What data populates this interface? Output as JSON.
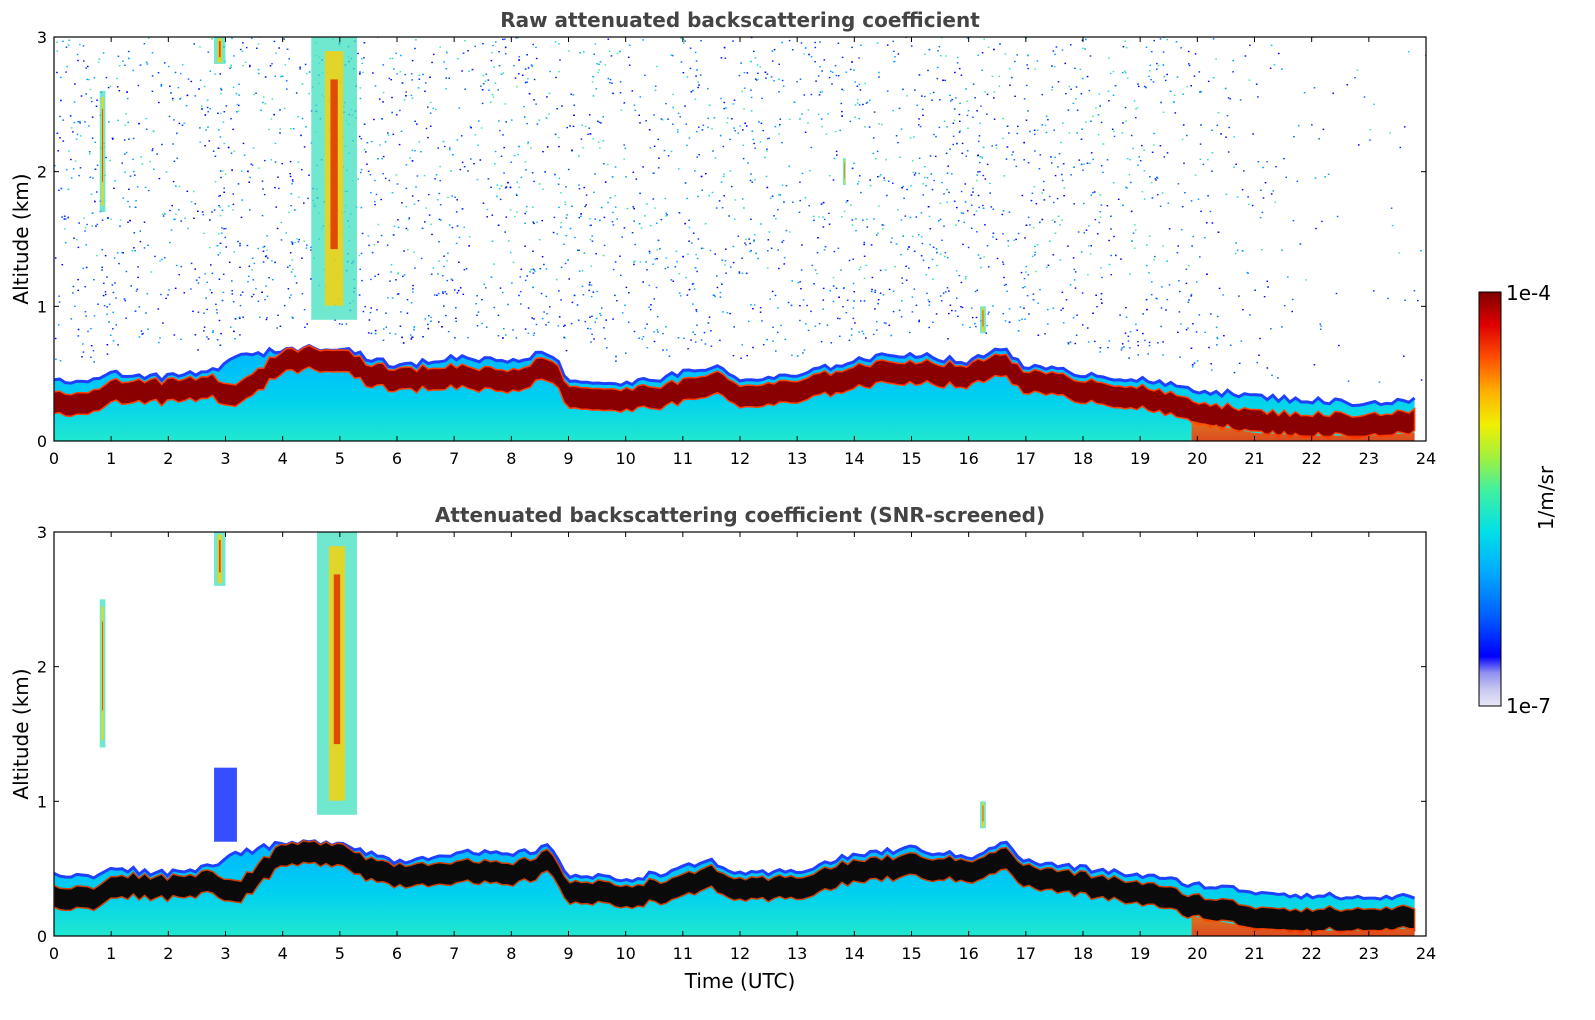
{
  "chart_data": [
    {
      "type": "heatmap",
      "title": "Raw attenuated backscattering coefficient",
      "xlabel": "",
      "ylabel": "Altitude (km)",
      "xlim": [
        0,
        24
      ],
      "ylim": [
        0,
        3
      ],
      "x_ticks": [
        "0",
        "1",
        "2",
        "3",
        "4",
        "5",
        "6",
        "7",
        "8",
        "9",
        "10",
        "11",
        "12",
        "13",
        "14",
        "15",
        "16",
        "17",
        "18",
        "19",
        "20",
        "21",
        "22",
        "23",
        "24"
      ],
      "y_ticks": [
        "0",
        "1",
        "2",
        "3"
      ],
      "screened": false,
      "boundary_layer_top_km": [
        [
          0,
          0.45
        ],
        [
          0.8,
          0.44
        ],
        [
          1.0,
          0.52
        ],
        [
          1.5,
          0.48
        ],
        [
          2.0,
          0.47
        ],
        [
          2.8,
          0.52
        ],
        [
          3.0,
          0.6
        ],
        [
          4.0,
          0.68
        ],
        [
          5.0,
          0.7
        ],
        [
          5.5,
          0.62
        ],
        [
          6.0,
          0.55
        ],
        [
          7.0,
          0.62
        ],
        [
          8.0,
          0.6
        ],
        [
          8.7,
          0.66
        ],
        [
          9.0,
          0.45
        ],
        [
          10.0,
          0.42
        ],
        [
          11.0,
          0.5
        ],
        [
          11.5,
          0.56
        ],
        [
          12.0,
          0.45
        ],
        [
          13.0,
          0.48
        ],
        [
          14.0,
          0.6
        ],
        [
          15.0,
          0.65
        ],
        [
          16.0,
          0.58
        ],
        [
          16.6,
          0.7
        ],
        [
          17.0,
          0.55
        ],
        [
          18.0,
          0.5
        ],
        [
          19.0,
          0.45
        ],
        [
          20.0,
          0.38
        ],
        [
          21.0,
          0.33
        ],
        [
          22.0,
          0.3
        ],
        [
          23.0,
          0.28
        ],
        [
          23.8,
          0.3
        ]
      ],
      "aerosol_layer_km": [
        [
          0,
          0.28
        ],
        [
          0.8,
          0.28
        ],
        [
          1.0,
          0.38
        ],
        [
          2.0,
          0.36
        ],
        [
          2.8,
          0.4
        ],
        [
          3.2,
          0.32
        ],
        [
          4.0,
          0.6
        ],
        [
          5.0,
          0.62
        ],
        [
          5.5,
          0.5
        ],
        [
          6.0,
          0.45
        ],
        [
          7.0,
          0.48
        ],
        [
          8.0,
          0.45
        ],
        [
          8.7,
          0.55
        ],
        [
          9.0,
          0.33
        ],
        [
          10.0,
          0.3
        ],
        [
          11.0,
          0.36
        ],
        [
          11.5,
          0.44
        ],
        [
          12.0,
          0.33
        ],
        [
          13.0,
          0.36
        ],
        [
          14.0,
          0.48
        ],
        [
          15.0,
          0.52
        ],
        [
          16.0,
          0.48
        ],
        [
          16.6,
          0.58
        ],
        [
          17.0,
          0.44
        ],
        [
          18.0,
          0.38
        ],
        [
          19.0,
          0.32
        ],
        [
          20.0,
          0.22
        ],
        [
          21.0,
          0.14
        ],
        [
          22.0,
          0.12
        ],
        [
          23.0,
          0.12
        ],
        [
          23.8,
          0.14
        ]
      ],
      "cloud_features": [
        {
          "time_utc": [
            0.8,
            0.9
          ],
          "altitude_km": [
            1.7,
            2.6
          ]
        },
        {
          "time_utc": [
            2.8,
            3.0
          ],
          "altitude_km": [
            2.8,
            3.0
          ]
        },
        {
          "time_utc": [
            4.5,
            5.3
          ],
          "altitude_km": [
            0.9,
            3.0
          ]
        },
        {
          "time_utc": [
            13.8,
            13.85
          ],
          "altitude_km": [
            1.9,
            2.1
          ]
        },
        {
          "time_utc": [
            16.2,
            16.3
          ],
          "altitude_km": [
            0.8,
            1.0
          ]
        }
      ]
    },
    {
      "type": "heatmap",
      "title": "Attenuated backscattering coefficient (SNR-screened)",
      "xlabel": "Time (UTC)",
      "ylabel": "Altitude (km)",
      "xlim": [
        0,
        24
      ],
      "ylim": [
        0,
        3
      ],
      "x_ticks": [
        "0",
        "1",
        "2",
        "3",
        "4",
        "5",
        "6",
        "7",
        "8",
        "9",
        "10",
        "11",
        "12",
        "13",
        "14",
        "15",
        "16",
        "17",
        "18",
        "19",
        "20",
        "21",
        "22",
        "23",
        "24"
      ],
      "y_ticks": [
        "0",
        "1",
        "2",
        "3"
      ],
      "screened": true,
      "boundary_layer_top_km": [
        [
          0,
          0.45
        ],
        [
          0.8,
          0.44
        ],
        [
          1.0,
          0.52
        ],
        [
          1.5,
          0.48
        ],
        [
          2.0,
          0.47
        ],
        [
          2.8,
          0.52
        ],
        [
          3.0,
          0.6
        ],
        [
          4.0,
          0.68
        ],
        [
          5.0,
          0.7
        ],
        [
          5.5,
          0.62
        ],
        [
          6.0,
          0.55
        ],
        [
          7.0,
          0.62
        ],
        [
          8.0,
          0.6
        ],
        [
          8.7,
          0.66
        ],
        [
          9.0,
          0.45
        ],
        [
          10.0,
          0.42
        ],
        [
          11.0,
          0.5
        ],
        [
          11.5,
          0.56
        ],
        [
          12.0,
          0.45
        ],
        [
          13.0,
          0.48
        ],
        [
          14.0,
          0.6
        ],
        [
          15.0,
          0.65
        ],
        [
          16.0,
          0.58
        ],
        [
          16.6,
          0.7
        ],
        [
          17.0,
          0.55
        ],
        [
          18.0,
          0.5
        ],
        [
          19.0,
          0.45
        ],
        [
          20.0,
          0.38
        ],
        [
          21.0,
          0.33
        ],
        [
          22.0,
          0.3
        ],
        [
          23.0,
          0.28
        ],
        [
          23.8,
          0.3
        ]
      ],
      "aerosol_layer_km": [
        [
          0,
          0.28
        ],
        [
          0.8,
          0.28
        ],
        [
          1.0,
          0.38
        ],
        [
          2.0,
          0.36
        ],
        [
          2.8,
          0.4
        ],
        [
          3.2,
          0.32
        ],
        [
          4.0,
          0.6
        ],
        [
          5.0,
          0.62
        ],
        [
          5.5,
          0.5
        ],
        [
          6.0,
          0.45
        ],
        [
          7.0,
          0.48
        ],
        [
          8.0,
          0.45
        ],
        [
          8.7,
          0.55
        ],
        [
          9.0,
          0.33
        ],
        [
          10.0,
          0.3
        ],
        [
          11.0,
          0.36
        ],
        [
          11.5,
          0.44
        ],
        [
          12.0,
          0.33
        ],
        [
          13.0,
          0.36
        ],
        [
          14.0,
          0.48
        ],
        [
          15.0,
          0.52
        ],
        [
          16.0,
          0.48
        ],
        [
          16.6,
          0.58
        ],
        [
          17.0,
          0.44
        ],
        [
          18.0,
          0.38
        ],
        [
          19.0,
          0.32
        ],
        [
          20.0,
          0.22
        ],
        [
          21.0,
          0.14
        ],
        [
          22.0,
          0.12
        ],
        [
          23.0,
          0.12
        ],
        [
          23.8,
          0.14
        ]
      ],
      "cloud_features": [
        {
          "time_utc": [
            0.8,
            0.9
          ],
          "altitude_km": [
            1.4,
            2.5
          ]
        },
        {
          "time_utc": [
            2.8,
            3.0
          ],
          "altitude_km": [
            2.6,
            3.0
          ]
        },
        {
          "time_utc": [
            4.6,
            5.3
          ],
          "altitude_km": [
            0.9,
            3.0
          ]
        },
        {
          "time_utc": [
            2.8,
            3.2
          ],
          "altitude_km": [
            0.7,
            1.25
          ]
        },
        {
          "time_utc": [
            16.2,
            16.3
          ],
          "altitude_km": [
            0.8,
            1.0
          ]
        }
      ]
    }
  ],
  "colorbar": {
    "max_label": "1e-4",
    "min_label": "1e-7",
    "unit_label": "1/m/sr",
    "colors": [
      "#e8e8f8",
      "#c8c8f0",
      "#9090f0",
      "#0000ff",
      "#0060ff",
      "#00a8ff",
      "#00e0e8",
      "#40f0a0",
      "#a0f040",
      "#f0f000",
      "#ffb000",
      "#ff5000",
      "#e00000",
      "#800000"
    ]
  }
}
